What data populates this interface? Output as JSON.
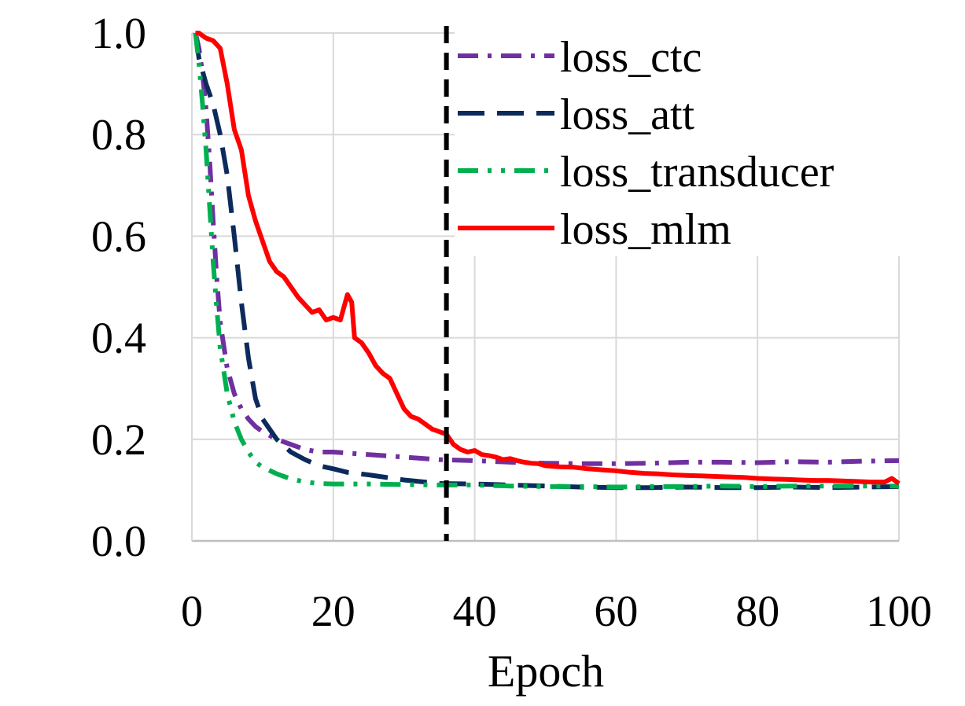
{
  "chart_data": {
    "type": "line",
    "title": "",
    "xlabel": "Epoch",
    "ylabel": "",
    "xlim": [
      0,
      100
    ],
    "ylim": [
      0,
      1.0
    ],
    "xticks": [
      "0",
      "20",
      "40",
      "60",
      "80",
      "100"
    ],
    "yticks": [
      "0.0",
      "0.2",
      "0.4",
      "0.6",
      "0.8",
      "1.0"
    ],
    "grid": true,
    "legend_position": "top-right",
    "vline": {
      "x": 36,
      "style": "dashed",
      "color": "#000000"
    },
    "series": [
      {
        "name": "loss_ctc",
        "color": "#7030a0",
        "dash": "dash-dot",
        "x": [
          0.5,
          1,
          1.5,
          2,
          2.5,
          3,
          3.5,
          4,
          5,
          6,
          7,
          8,
          9,
          10,
          12,
          14,
          16,
          18,
          20,
          25,
          30,
          35,
          40,
          45,
          50,
          55,
          60,
          65,
          70,
          75,
          80,
          85,
          90,
          95,
          100
        ],
        "y": [
          1.0,
          0.97,
          0.92,
          0.85,
          0.75,
          0.63,
          0.52,
          0.43,
          0.34,
          0.29,
          0.26,
          0.24,
          0.225,
          0.215,
          0.2,
          0.19,
          0.18,
          0.175,
          0.175,
          0.17,
          0.165,
          0.16,
          0.158,
          0.155,
          0.153,
          0.152,
          0.152,
          0.153,
          0.155,
          0.155,
          0.154,
          0.156,
          0.155,
          0.157,
          0.158
        ]
      },
      {
        "name": "loss_att",
        "color": "#0d2a5c",
        "dash": "long-dash",
        "x": [
          0.5,
          1,
          2,
          3,
          4,
          5,
          6,
          7,
          8,
          9,
          10,
          12,
          14,
          16,
          18,
          20,
          22,
          25,
          30,
          35,
          40,
          45,
          50,
          55,
          60,
          65,
          70,
          75,
          80,
          85,
          90,
          95,
          100
        ],
        "y": [
          1.0,
          0.95,
          0.9,
          0.86,
          0.8,
          0.72,
          0.6,
          0.47,
          0.36,
          0.28,
          0.24,
          0.2,
          0.175,
          0.16,
          0.148,
          0.142,
          0.135,
          0.13,
          0.12,
          0.113,
          0.112,
          0.11,
          0.108,
          0.106,
          0.105,
          0.105,
          0.106,
          0.105,
          0.105,
          0.106,
          0.105,
          0.106,
          0.107
        ]
      },
      {
        "name": "loss_transducer",
        "color": "#00b050",
        "dash": "dash-dot-dot",
        "x": [
          0.5,
          1,
          1.5,
          2,
          2.5,
          3,
          3.5,
          4,
          5,
          6,
          7,
          8,
          9,
          10,
          12,
          14,
          16,
          18,
          20,
          25,
          30,
          35,
          40,
          45,
          50,
          55,
          60,
          65,
          70,
          75,
          80,
          85,
          90,
          95,
          100
        ],
        "y": [
          1.0,
          0.94,
          0.86,
          0.77,
          0.66,
          0.55,
          0.46,
          0.38,
          0.29,
          0.235,
          0.2,
          0.175,
          0.155,
          0.145,
          0.132,
          0.122,
          0.116,
          0.113,
          0.112,
          0.112,
          0.111,
          0.11,
          0.11,
          0.108,
          0.107,
          0.107,
          0.106,
          0.107,
          0.107,
          0.108,
          0.107,
          0.108,
          0.108,
          0.108,
          0.108
        ]
      },
      {
        "name": "loss_mlm",
        "color": "#ff0000",
        "dash": "solid",
        "x": [
          0.5,
          1,
          2,
          3,
          4,
          5,
          6,
          7,
          8,
          9,
          10,
          11,
          12,
          13,
          14,
          15,
          16,
          17,
          18,
          19,
          20,
          21,
          22,
          22.6,
          23,
          24,
          25,
          26,
          27,
          28,
          29,
          30,
          31,
          32,
          33,
          34,
          35,
          36,
          37,
          38,
          39,
          40,
          41,
          42,
          43,
          44,
          45,
          46,
          47,
          48,
          49,
          50,
          52,
          54,
          56,
          58,
          60,
          62,
          64,
          66,
          68,
          70,
          72,
          74,
          76,
          78,
          80,
          82,
          84,
          86,
          88,
          90,
          92,
          94,
          96,
          98,
          99,
          100
        ],
        "y": [
          1.0,
          1.0,
          0.99,
          0.985,
          0.97,
          0.9,
          0.81,
          0.77,
          0.68,
          0.63,
          0.59,
          0.55,
          0.53,
          0.52,
          0.5,
          0.48,
          0.465,
          0.45,
          0.455,
          0.435,
          0.44,
          0.435,
          0.485,
          0.47,
          0.4,
          0.39,
          0.37,
          0.345,
          0.33,
          0.32,
          0.29,
          0.26,
          0.245,
          0.24,
          0.23,
          0.22,
          0.215,
          0.21,
          0.19,
          0.18,
          0.175,
          0.178,
          0.17,
          0.168,
          0.165,
          0.16,
          0.162,
          0.158,
          0.155,
          0.153,
          0.152,
          0.148,
          0.146,
          0.145,
          0.142,
          0.14,
          0.138,
          0.135,
          0.133,
          0.132,
          0.13,
          0.129,
          0.128,
          0.127,
          0.126,
          0.125,
          0.123,
          0.122,
          0.121,
          0.12,
          0.119,
          0.119,
          0.118,
          0.117,
          0.116,
          0.116,
          0.123,
          0.113
        ]
      }
    ]
  }
}
